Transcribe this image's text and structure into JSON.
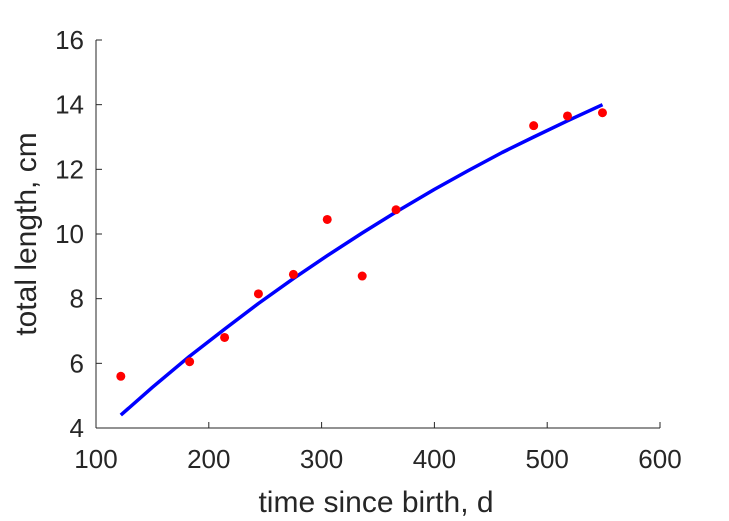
{
  "chart_data": {
    "type": "scatter",
    "title": "",
    "xlabel": "time since birth, d",
    "ylabel": "total length, cm",
    "xlim": [
      100,
      600
    ],
    "ylim": [
      4,
      16
    ],
    "xticks": [
      100,
      200,
      300,
      400,
      500,
      600
    ],
    "yticks": [
      4,
      6,
      8,
      10,
      12,
      14,
      16
    ],
    "grid": false,
    "series": [
      {
        "kind": "points",
        "color": "#ff0000",
        "points": [
          [
            122,
            5.6
          ],
          [
            183,
            6.05
          ],
          [
            214,
            6.8
          ],
          [
            244,
            8.15
          ],
          [
            275,
            8.75
          ],
          [
            305,
            10.45
          ],
          [
            336,
            8.7
          ],
          [
            366,
            10.75
          ],
          [
            488,
            13.35
          ],
          [
            518,
            13.65
          ],
          [
            549,
            13.75
          ]
        ]
      },
      {
        "kind": "curve",
        "color": "#0000ff",
        "points": [
          [
            122,
            4.4
          ],
          [
            150,
            5.26
          ],
          [
            183,
            6.22
          ],
          [
            214,
            7.06
          ],
          [
            244,
            7.85
          ],
          [
            275,
            8.62
          ],
          [
            305,
            9.33
          ],
          [
            336,
            10.03
          ],
          [
            366,
            10.68
          ],
          [
            400,
            11.38
          ],
          [
            430,
            11.96
          ],
          [
            460,
            12.52
          ],
          [
            488,
            13.0
          ],
          [
            518,
            13.5
          ],
          [
            549,
            14.0
          ]
        ]
      }
    ]
  }
}
